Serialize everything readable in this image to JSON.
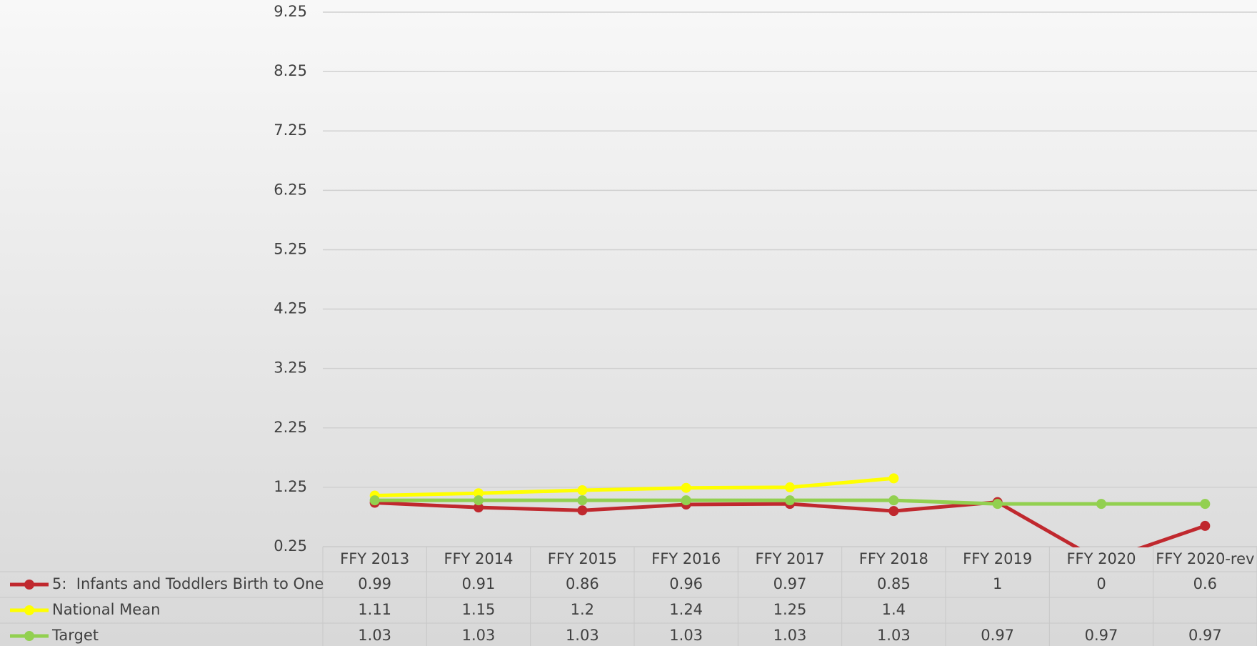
{
  "chart_data": {
    "type": "line",
    "categories": [
      "FFY 2013",
      "FFY 2014",
      "FFY 2015",
      "FFY 2016",
      "FFY 2017",
      "FFY 2018",
      "FFY 2019",
      "FFY 2020",
      "FFY 2020-rev"
    ],
    "series": [
      {
        "name": "5:  Infants and Toddlers Birth to One",
        "color": "#c0282e",
        "values": [
          0.99,
          0.91,
          0.86,
          0.96,
          0.97,
          0.85,
          1,
          0,
          0.6
        ]
      },
      {
        "name": "National Mean",
        "color": "#ffff00",
        "values": [
          1.11,
          1.15,
          1.2,
          1.24,
          1.25,
          1.4,
          null,
          null,
          null
        ]
      },
      {
        "name": "Target",
        "color": "#92d050",
        "values": [
          1.03,
          1.03,
          1.03,
          1.03,
          1.03,
          1.03,
          0.97,
          0.97,
          0.97
        ]
      }
    ],
    "ylim": [
      0.25,
      9.25
    ],
    "yticks": [
      0.25,
      1.25,
      2.25,
      3.25,
      4.25,
      5.25,
      6.25,
      7.25,
      8.25,
      9.25
    ],
    "grid": true,
    "legend": "table"
  }
}
